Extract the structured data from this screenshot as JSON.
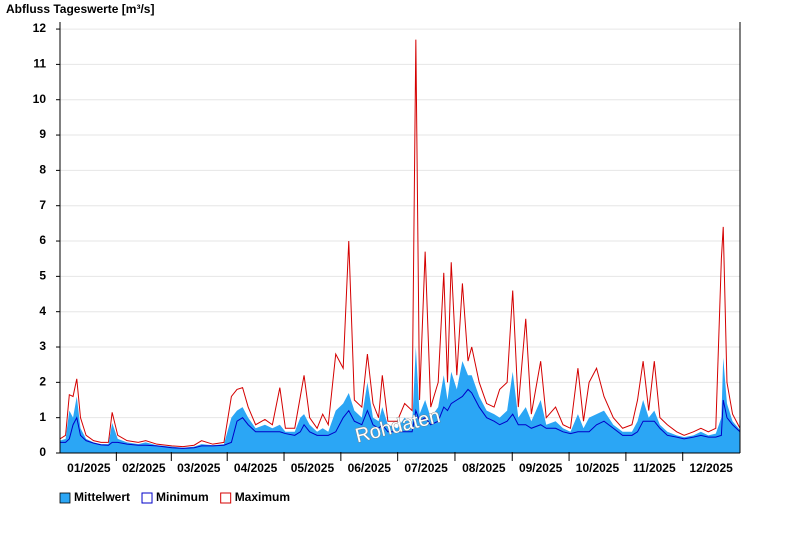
{
  "chart_data": {
    "type": "area-line",
    "title": "Abfluss Tageswerte [m³/s]",
    "annotation": "Rohdaten",
    "x": [
      0,
      3,
      5,
      7,
      9,
      11,
      14,
      18,
      22,
      26,
      28,
      31,
      36,
      42,
      46,
      52,
      60,
      66,
      72,
      76,
      82,
      88,
      92,
      95,
      98,
      101,
      105,
      110,
      114,
      118,
      121,
      126,
      129,
      131,
      134,
      138,
      141,
      144,
      148,
      152,
      155,
      158,
      162,
      165,
      168,
      171,
      173,
      176,
      181,
      185,
      189,
      191,
      193,
      196,
      199,
      203,
      206,
      208,
      210,
      213,
      216,
      219,
      221,
      225,
      229,
      233,
      236,
      240,
      243,
      246,
      250,
      253,
      258,
      261,
      266,
      270,
      274,
      278,
      281,
      284,
      288,
      292,
      297,
      302,
      307,
      310,
      313,
      316,
      319,
      322,
      326,
      331,
      335,
      340,
      344,
      348,
      352,
      355,
      356,
      358,
      361,
      365
    ],
    "xlim": [
      0,
      365
    ],
    "xticks": [
      {
        "value": 15.5,
        "label": "01/2025"
      },
      {
        "value": 45,
        "label": "02/2025"
      },
      {
        "value": 74.5,
        "label": "03/2025"
      },
      {
        "value": 105,
        "label": "04/2025"
      },
      {
        "value": 135.5,
        "label": "05/2025"
      },
      {
        "value": 166,
        "label": "06/2025"
      },
      {
        "value": 196.5,
        "label": "07/2025"
      },
      {
        "value": 227.5,
        "label": "08/2025"
      },
      {
        "value": 258,
        "label": "09/2025"
      },
      {
        "value": 288.5,
        "label": "10/2025"
      },
      {
        "value": 319,
        "label": "11/2025"
      },
      {
        "value": 349.5,
        "label": "12/2025"
      }
    ],
    "ylim": [
      0,
      12.2
    ],
    "yticks": [
      0,
      1,
      2,
      3,
      4,
      5,
      6,
      7,
      8,
      9,
      10,
      11,
      12
    ],
    "grid": true,
    "legend": "bottom-left",
    "series": [
      {
        "name": "Mittelwert",
        "style": "area",
        "color": "#2ba6f5",
        "values": [
          0.35,
          0.4,
          1.2,
          1.0,
          1.6,
          0.7,
          0.4,
          0.3,
          0.25,
          0.25,
          0.85,
          0.4,
          0.3,
          0.25,
          0.3,
          0.22,
          0.18,
          0.15,
          0.18,
          0.25,
          0.22,
          0.25,
          1.0,
          1.2,
          1.3,
          1.0,
          0.7,
          0.8,
          0.7,
          0.8,
          0.6,
          0.6,
          1.0,
          1.1,
          0.8,
          0.6,
          0.7,
          0.6,
          1.2,
          1.4,
          1.7,
          1.2,
          1.0,
          2.0,
          1.0,
          0.9,
          1.3,
          0.8,
          0.7,
          1.0,
          0.8,
          3.0,
          1.1,
          1.5,
          1.0,
          1.3,
          2.2,
          1.5,
          2.3,
          1.8,
          2.6,
          2.2,
          2.2,
          1.6,
          1.2,
          1.1,
          1.0,
          1.2,
          2.3,
          1.0,
          1.3,
          0.9,
          1.5,
          0.8,
          0.9,
          0.7,
          0.6,
          1.1,
          0.7,
          1.0,
          1.1,
          1.2,
          0.8,
          0.6,
          0.6,
          0.9,
          1.5,
          1.0,
          1.2,
          0.8,
          0.6,
          0.5,
          0.45,
          0.5,
          0.6,
          0.5,
          0.55,
          1.0,
          2.7,
          1.4,
          0.9,
          0.65
        ]
      },
      {
        "name": "Minimum",
        "style": "line",
        "color": "#0000c8",
        "values": [
          0.3,
          0.3,
          0.4,
          0.8,
          1.0,
          0.5,
          0.35,
          0.28,
          0.23,
          0.22,
          0.3,
          0.3,
          0.25,
          0.22,
          0.22,
          0.2,
          0.15,
          0.13,
          0.15,
          0.2,
          0.2,
          0.22,
          0.3,
          0.9,
          1.0,
          0.8,
          0.6,
          0.6,
          0.6,
          0.6,
          0.55,
          0.5,
          0.6,
          0.8,
          0.6,
          0.5,
          0.5,
          0.5,
          0.6,
          1.0,
          1.2,
          0.9,
          0.8,
          1.2,
          0.8,
          0.7,
          0.8,
          0.6,
          0.6,
          0.6,
          0.6,
          1.2,
          0.9,
          1.0,
          0.8,
          0.9,
          1.3,
          1.2,
          1.4,
          1.5,
          1.6,
          1.8,
          1.7,
          1.3,
          1.0,
          0.9,
          0.8,
          0.9,
          1.1,
          0.8,
          0.8,
          0.7,
          0.8,
          0.7,
          0.7,
          0.6,
          0.55,
          0.6,
          0.6,
          0.6,
          0.8,
          0.9,
          0.7,
          0.5,
          0.5,
          0.6,
          0.9,
          0.9,
          0.9,
          0.7,
          0.5,
          0.45,
          0.4,
          0.45,
          0.5,
          0.45,
          0.45,
          0.5,
          1.5,
          1.0,
          0.8,
          0.6
        ]
      },
      {
        "name": "Maximum",
        "style": "line",
        "color": "#d40000",
        "values": [
          0.4,
          0.5,
          1.65,
          1.6,
          2.1,
          1.0,
          0.5,
          0.35,
          0.3,
          0.3,
          1.15,
          0.5,
          0.35,
          0.3,
          0.35,
          0.25,
          0.2,
          0.18,
          0.22,
          0.35,
          0.25,
          0.3,
          1.6,
          1.8,
          1.85,
          1.3,
          0.8,
          0.95,
          0.8,
          1.85,
          0.7,
          0.7,
          1.6,
          2.2,
          1.0,
          0.7,
          1.1,
          0.8,
          2.8,
          2.4,
          6.0,
          1.5,
          1.3,
          2.8,
          1.4,
          1.0,
          2.2,
          0.9,
          0.9,
          1.4,
          1.2,
          11.7,
          1.5,
          5.7,
          1.3,
          2.0,
          5.1,
          2.0,
          5.4,
          2.2,
          4.8,
          2.6,
          3.0,
          2.0,
          1.4,
          1.3,
          1.8,
          2.0,
          4.6,
          1.3,
          3.8,
          1.1,
          2.6,
          1.0,
          1.3,
          0.8,
          0.7,
          2.4,
          0.9,
          2.0,
          2.4,
          1.6,
          1.0,
          0.7,
          0.8,
          1.5,
          2.6,
          1.2,
          2.6,
          1.0,
          0.8,
          0.6,
          0.5,
          0.6,
          0.7,
          0.6,
          0.7,
          5.5,
          6.4,
          2.0,
          1.1,
          0.7
        ]
      }
    ]
  }
}
